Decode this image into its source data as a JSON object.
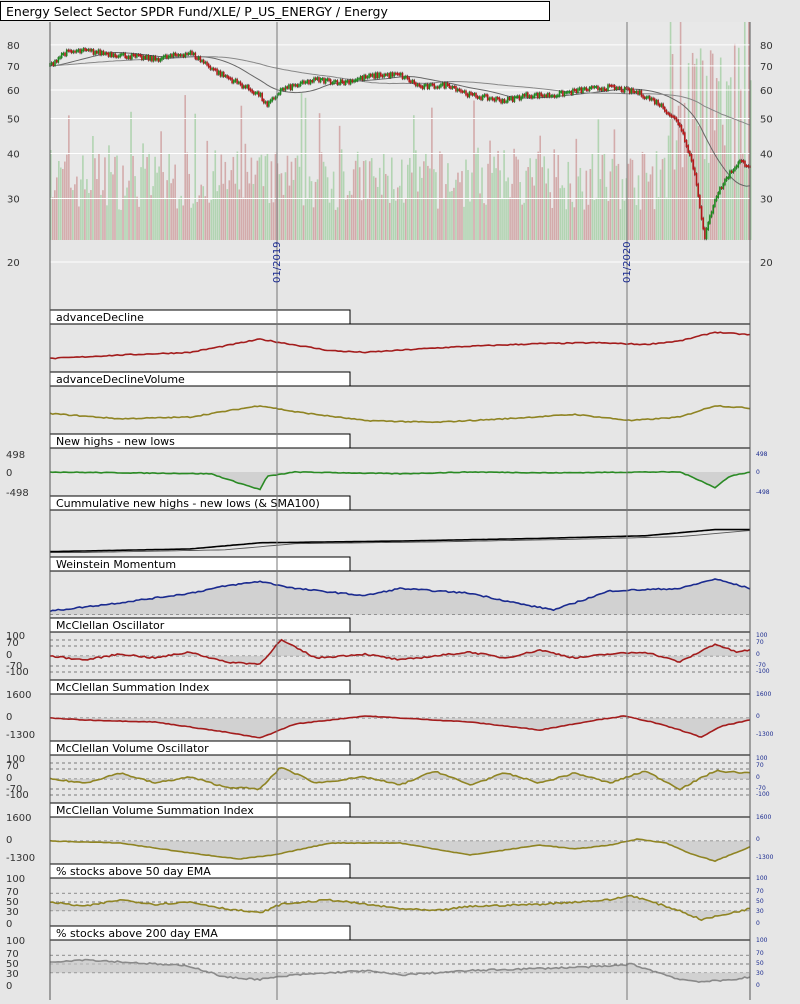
{
  "chart_data": {
    "type": "line",
    "title": "Energy Select Sector SPDR Fund/XLE/ P_US_ENERGY / Energy",
    "date_markers": [
      "01/2019",
      "01/2020"
    ],
    "price": {
      "scale": "log",
      "y_ticks": [
        20,
        30,
        40,
        50,
        60,
        70,
        80
      ],
      "ylim": [
        20,
        88
      ],
      "series": [
        {
          "x": 0,
          "y": 70
        },
        {
          "x": 0.02,
          "y": 76
        },
        {
          "x": 0.05,
          "y": 77
        },
        {
          "x": 0.1,
          "y": 75
        },
        {
          "x": 0.15,
          "y": 73
        },
        {
          "x": 0.2,
          "y": 76
        },
        {
          "x": 0.24,
          "y": 67
        },
        {
          "x": 0.3,
          "y": 58
        },
        {
          "x": 0.31,
          "y": 54
        },
        {
          "x": 0.33,
          "y": 60
        },
        {
          "x": 0.38,
          "y": 64
        },
        {
          "x": 0.42,
          "y": 63
        },
        {
          "x": 0.45,
          "y": 65
        },
        {
          "x": 0.47,
          "y": 66
        },
        {
          "x": 0.5,
          "y": 66
        },
        {
          "x": 0.53,
          "y": 61
        },
        {
          "x": 0.57,
          "y": 62
        },
        {
          "x": 0.6,
          "y": 58
        },
        {
          "x": 0.65,
          "y": 56
        },
        {
          "x": 0.68,
          "y": 58
        },
        {
          "x": 0.72,
          "y": 58
        },
        {
          "x": 0.76,
          "y": 60
        },
        {
          "x": 0.8,
          "y": 61
        },
        {
          "x": 0.84,
          "y": 59
        },
        {
          "x": 0.87,
          "y": 55
        },
        {
          "x": 0.9,
          "y": 48
        },
        {
          "x": 0.92,
          "y": 36
        },
        {
          "x": 0.935,
          "y": 23
        },
        {
          "x": 0.95,
          "y": 30
        },
        {
          "x": 0.97,
          "y": 35
        },
        {
          "x": 0.985,
          "y": 38
        },
        {
          "x": 1,
          "y": 37
        }
      ]
    },
    "panels": [
      {
        "label": "advanceDecline",
        "color": "#a31c1c",
        "ticks": [],
        "series": [
          [
            0,
            8
          ],
          [
            0.1,
            12
          ],
          [
            0.2,
            15
          ],
          [
            0.3,
            30
          ],
          [
            0.4,
            17
          ],
          [
            0.45,
            15
          ],
          [
            0.55,
            20
          ],
          [
            0.6,
            22
          ],
          [
            0.7,
            25
          ],
          [
            0.78,
            26
          ],
          [
            0.85,
            24
          ],
          [
            0.9,
            28
          ],
          [
            0.95,
            38
          ],
          [
            1,
            35
          ]
        ]
      },
      {
        "label": "advanceDeclineVolume",
        "color": "#8f8423",
        "ticks": [],
        "series": [
          [
            0,
            16
          ],
          [
            0.1,
            10
          ],
          [
            0.2,
            12
          ],
          [
            0.3,
            25
          ],
          [
            0.35,
            18
          ],
          [
            0.45,
            8
          ],
          [
            0.55,
            6
          ],
          [
            0.65,
            10
          ],
          [
            0.75,
            15
          ],
          [
            0.83,
            8
          ],
          [
            0.9,
            12
          ],
          [
            0.95,
            25
          ],
          [
            1,
            22
          ]
        ]
      },
      {
        "label": "New highs - new lows",
        "color": "#2a8a24",
        "ticks": [
          "498",
          "0",
          "-498"
        ],
        "right_ticks": [
          "498",
          "0",
          "-498"
        ],
        "series": [
          [
            0,
            0
          ],
          [
            0.23,
            -2
          ],
          [
            0.26,
            -10
          ],
          [
            0.3,
            -20
          ],
          [
            0.31,
            -5
          ],
          [
            0.35,
            0
          ],
          [
            0.5,
            -2
          ],
          [
            0.6,
            0
          ],
          [
            0.72,
            -1
          ],
          [
            0.85,
            0
          ],
          [
            0.9,
            0
          ],
          [
            0.93,
            -10
          ],
          [
            0.95,
            -18
          ],
          [
            0.97,
            -5
          ],
          [
            1,
            0
          ]
        ]
      },
      {
        "label": "Cummulative new highs - new lows (& SMA100)",
        "color": "#000000",
        "ticks": [],
        "series": [
          [
            0,
            0
          ],
          [
            0.2,
            3
          ],
          [
            0.3,
            10
          ],
          [
            0.5,
            12
          ],
          [
            0.7,
            15
          ],
          [
            0.85,
            18
          ],
          [
            0.95,
            25
          ],
          [
            1,
            25
          ]
        ]
      },
      {
        "label": "Weinstein Momentum",
        "color": "#1a2a8f",
        "ticks": [],
        "series": [
          [
            0,
            3
          ],
          [
            0.1,
            10
          ],
          [
            0.2,
            18
          ],
          [
            0.25,
            24
          ],
          [
            0.3,
            28
          ],
          [
            0.35,
            22
          ],
          [
            0.45,
            16
          ],
          [
            0.5,
            22
          ],
          [
            0.6,
            18
          ],
          [
            0.68,
            8
          ],
          [
            0.72,
            4
          ],
          [
            0.8,
            20
          ],
          [
            0.9,
            22
          ],
          [
            0.95,
            30
          ],
          [
            1,
            22
          ]
        ]
      }
    ],
    "oscillators": [
      {
        "label": "McClellan Oscillator",
        "color": "#a31c1c",
        "ticks": [
          "100",
          "70",
          "0",
          "-70",
          "-100"
        ],
        "right_ticks": [
          "100",
          "70",
          "0",
          "-70",
          "-100"
        ],
        "series": [
          [
            0,
            0
          ],
          [
            0.05,
            -10
          ],
          [
            0.1,
            5
          ],
          [
            0.15,
            -5
          ],
          [
            0.2,
            10
          ],
          [
            0.25,
            -15
          ],
          [
            0.3,
            -20
          ],
          [
            0.33,
            40
          ],
          [
            0.38,
            -5
          ],
          [
            0.45,
            5
          ],
          [
            0.5,
            -10
          ],
          [
            0.6,
            10
          ],
          [
            0.65,
            -5
          ],
          [
            0.7,
            15
          ],
          [
            0.75,
            -5
          ],
          [
            0.8,
            5
          ],
          [
            0.85,
            10
          ],
          [
            0.9,
            -15
          ],
          [
            0.95,
            30
          ],
          [
            0.98,
            10
          ],
          [
            1,
            15
          ]
        ]
      },
      {
        "label": "McClellan Summation Index",
        "color": "#a31c1c",
        "ticks": [
          "1600",
          "0",
          "-1300"
        ],
        "right_ticks": [
          "1600",
          "0",
          "-1300"
        ],
        "series": [
          [
            0,
            0
          ],
          [
            0.05,
            -5
          ],
          [
            0.15,
            -10
          ],
          [
            0.25,
            -35
          ],
          [
            0.3,
            -50
          ],
          [
            0.35,
            -15
          ],
          [
            0.4,
            -5
          ],
          [
            0.45,
            5
          ],
          [
            0.5,
            0
          ],
          [
            0.6,
            -10
          ],
          [
            0.7,
            -30
          ],
          [
            0.78,
            -5
          ],
          [
            0.82,
            5
          ],
          [
            0.86,
            -10
          ],
          [
            0.9,
            -30
          ],
          [
            0.93,
            -48
          ],
          [
            0.96,
            -20
          ],
          [
            1,
            -5
          ]
        ]
      },
      {
        "label": "McClellan Volume Oscillator",
        "color": "#8f8423",
        "ticks": [
          "100",
          "70",
          "0",
          "-70",
          "-100"
        ],
        "right_ticks": [
          "100",
          "70",
          "0",
          "-70",
          "-100"
        ],
        "series": [
          [
            0,
            0
          ],
          [
            0.05,
            -10
          ],
          [
            0.1,
            15
          ],
          [
            0.15,
            -10
          ],
          [
            0.2,
            5
          ],
          [
            0.25,
            -20
          ],
          [
            0.3,
            -25
          ],
          [
            0.33,
            30
          ],
          [
            0.38,
            -10
          ],
          [
            0.45,
            5
          ],
          [
            0.5,
            -15
          ],
          [
            0.55,
            20
          ],
          [
            0.6,
            -15
          ],
          [
            0.65,
            15
          ],
          [
            0.7,
            -10
          ],
          [
            0.75,
            15
          ],
          [
            0.8,
            -10
          ],
          [
            0.85,
            20
          ],
          [
            0.9,
            -25
          ],
          [
            0.95,
            20
          ],
          [
            1,
            15
          ]
        ]
      },
      {
        "label": "McClellan Volume Summation Index",
        "color": "#8f8423",
        "ticks": [
          "1600",
          "0",
          "-1300"
        ],
        "right_ticks": [
          "1600",
          "0",
          "-1300"
        ],
        "series": [
          [
            0,
            0
          ],
          [
            0.1,
            -5
          ],
          [
            0.2,
            -30
          ],
          [
            0.27,
            -45
          ],
          [
            0.32,
            -35
          ],
          [
            0.4,
            -5
          ],
          [
            0.5,
            -5
          ],
          [
            0.6,
            -35
          ],
          [
            0.7,
            -10
          ],
          [
            0.75,
            -20
          ],
          [
            0.8,
            -10
          ],
          [
            0.84,
            5
          ],
          [
            0.88,
            -5
          ],
          [
            0.92,
            -35
          ],
          [
            0.95,
            -50
          ],
          [
            1,
            -15
          ]
        ]
      },
      {
        "label": "% stocks above 50 day EMA",
        "color": "#8f8423",
        "ticks": [
          "100",
          "70",
          "50",
          "30",
          "0"
        ],
        "right_ticks": [
          "100",
          "70",
          "50",
          "30",
          "0"
        ],
        "series": [
          [
            0,
            50
          ],
          [
            0.05,
            40
          ],
          [
            0.1,
            55
          ],
          [
            0.15,
            45
          ],
          [
            0.2,
            50
          ],
          [
            0.25,
            35
          ],
          [
            0.3,
            25
          ],
          [
            0.33,
            45
          ],
          [
            0.4,
            55
          ],
          [
            0.45,
            45
          ],
          [
            0.5,
            35
          ],
          [
            0.55,
            30
          ],
          [
            0.6,
            40
          ],
          [
            0.7,
            45
          ],
          [
            0.8,
            55
          ],
          [
            0.83,
            65
          ],
          [
            0.86,
            50
          ],
          [
            0.9,
            30
          ],
          [
            0.93,
            10
          ],
          [
            0.96,
            20
          ],
          [
            1,
            35
          ]
        ]
      },
      {
        "label": "% stocks above 200 day EMA",
        "color": "#8a8a8a",
        "ticks": [
          "100",
          "70",
          "50",
          "30",
          "0"
        ],
        "right_ticks": [
          "100",
          "70",
          "50",
          "30",
          "0"
        ],
        "series": [
          [
            0,
            55
          ],
          [
            0.05,
            60
          ],
          [
            0.1,
            55
          ],
          [
            0.15,
            50
          ],
          [
            0.2,
            45
          ],
          [
            0.25,
            20
          ],
          [
            0.3,
            15
          ],
          [
            0.35,
            25
          ],
          [
            0.4,
            30
          ],
          [
            0.45,
            35
          ],
          [
            0.5,
            25
          ],
          [
            0.6,
            35
          ],
          [
            0.7,
            40
          ],
          [
            0.8,
            45
          ],
          [
            0.83,
            50
          ],
          [
            0.86,
            35
          ],
          [
            0.9,
            15
          ],
          [
            0.93,
            10
          ],
          [
            0.96,
            12
          ],
          [
            1,
            20
          ]
        ]
      }
    ]
  }
}
